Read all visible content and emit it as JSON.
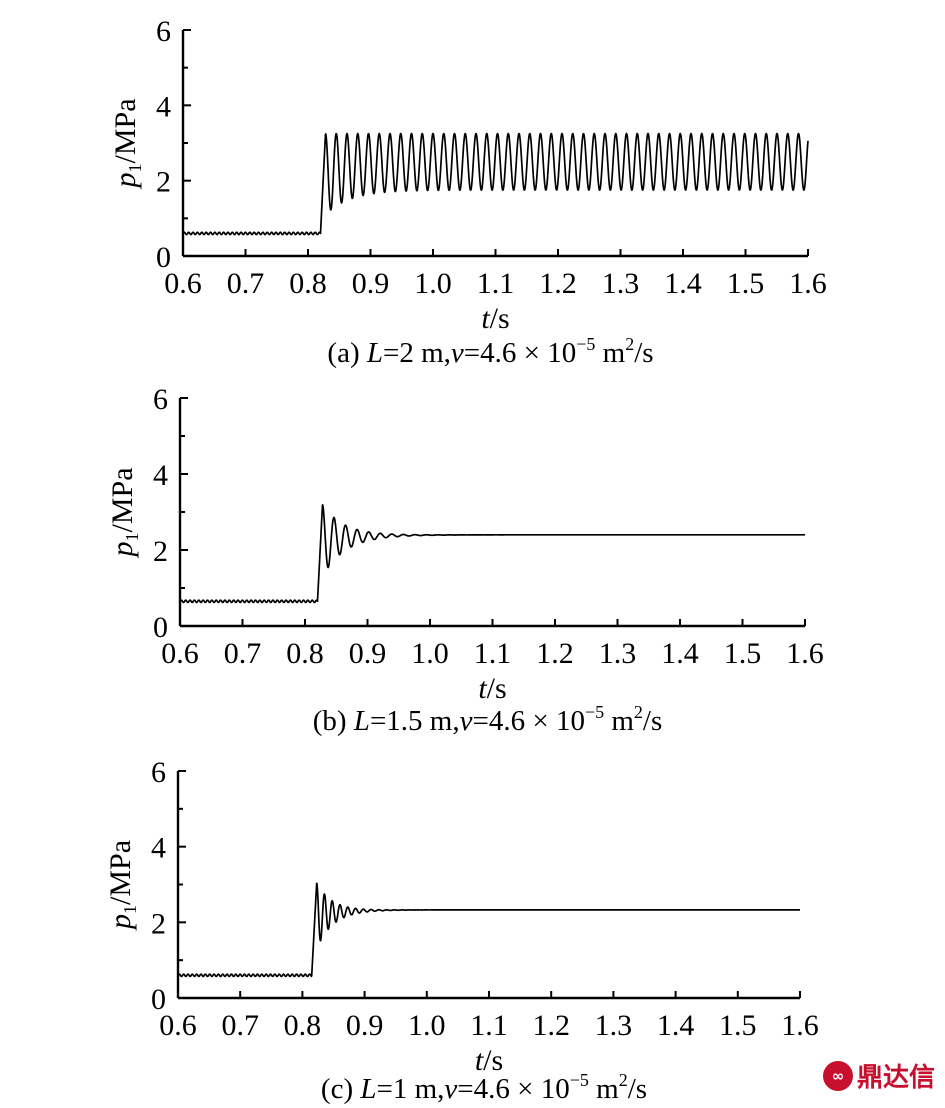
{
  "watermark": {
    "text": "鼎达信",
    "icon": "fd-logo-icon"
  },
  "chart_data": [
    {
      "type": "line",
      "panel": "a",
      "caption": {
        "prefix": "(a) ",
        "L_sym": "L",
        "L_val": "=2 m,",
        "v_sym": "v",
        "v_val": "=4.6 × 10",
        "exp": "−5",
        "unit_base": " m",
        "unit_exp": "2",
        "unit_tail": "/s"
      },
      "xlabel": {
        "sym": "t",
        "unit": "/s"
      },
      "ylabel": {
        "sym": "p",
        "sub": "1",
        "unit": "/MPa"
      },
      "xlim": [
        0.6,
        1.6
      ],
      "ylim": [
        0,
        6
      ],
      "xticks": [
        "0.6",
        "0.7",
        "0.8",
        "0.9",
        "1.0",
        "1.1",
        "1.2",
        "1.3",
        "1.4",
        "1.5",
        "1.6"
      ],
      "yticks": [
        "0",
        "2",
        "4",
        "6"
      ],
      "signal": {
        "initial": 0.6,
        "step_time": 0.82,
        "final": 2.5,
        "peak": 3.25,
        "first_trough": 1.1,
        "sustained_trough": 1.75,
        "period": 0.0172,
        "decay_time": null,
        "end_value": 2.0
      },
      "grid": false
    },
    {
      "type": "line",
      "panel": "b",
      "caption": {
        "prefix": "(b) ",
        "L_sym": "L",
        "L_val": "=1.5 m,",
        "v_sym": "v",
        "v_val": "=4.6 × 10",
        "exp": "−5",
        "unit_base": " m",
        "unit_exp": "2",
        "unit_tail": "/s"
      },
      "xlabel": {
        "sym": "t",
        "unit": "/s"
      },
      "ylabel": {
        "sym": "p",
        "sub": "1",
        "unit": "/MPa"
      },
      "xlim": [
        0.6,
        1.6
      ],
      "ylim": [
        0,
        6
      ],
      "xticks": [
        "0.6",
        "0.7",
        "0.8",
        "0.9",
        "1.0",
        "1.1",
        "1.2",
        "1.3",
        "1.4",
        "1.5",
        "1.6"
      ],
      "yticks": [
        "0",
        "2",
        "4",
        "6"
      ],
      "signal": {
        "initial": 0.65,
        "step_time": 0.82,
        "final": 2.4,
        "peak": 3.2,
        "first_trough": 1.3,
        "sustained_trough": 1.9,
        "period": 0.0185,
        "decay_time": 0.035,
        "end_value": 2.4
      },
      "grid": false
    },
    {
      "type": "line",
      "panel": "c",
      "caption": {
        "prefix": "(c) ",
        "L_sym": "L",
        "L_val": "=1 m,",
        "v_sym": "v",
        "v_val": "=4.6 × 10",
        "exp": "−5",
        "unit_base": " m",
        "unit_exp": "2",
        "unit_tail": "/s"
      },
      "xlabel": {
        "sym": "t",
        "unit": "/s"
      },
      "ylabel": {
        "sym": "p",
        "sub": "1",
        "unit": "/MPa"
      },
      "xlim": [
        0.6,
        1.6
      ],
      "ylim": [
        0,
        6
      ],
      "xticks": [
        "0.6",
        "0.7",
        "0.8",
        "0.9",
        "1.0",
        "1.1",
        "1.2",
        "1.3",
        "1.4",
        "1.5",
        "1.6"
      ],
      "yticks": [
        "0",
        "2",
        "4",
        "6"
      ],
      "signal": {
        "initial": 0.6,
        "step_time": 0.815,
        "final": 2.33,
        "peak": 3.05,
        "first_trough": 1.3,
        "sustained_trough": 2.0,
        "period": 0.0125,
        "decay_time": 0.025,
        "end_value": 2.35
      },
      "grid": false
    }
  ]
}
